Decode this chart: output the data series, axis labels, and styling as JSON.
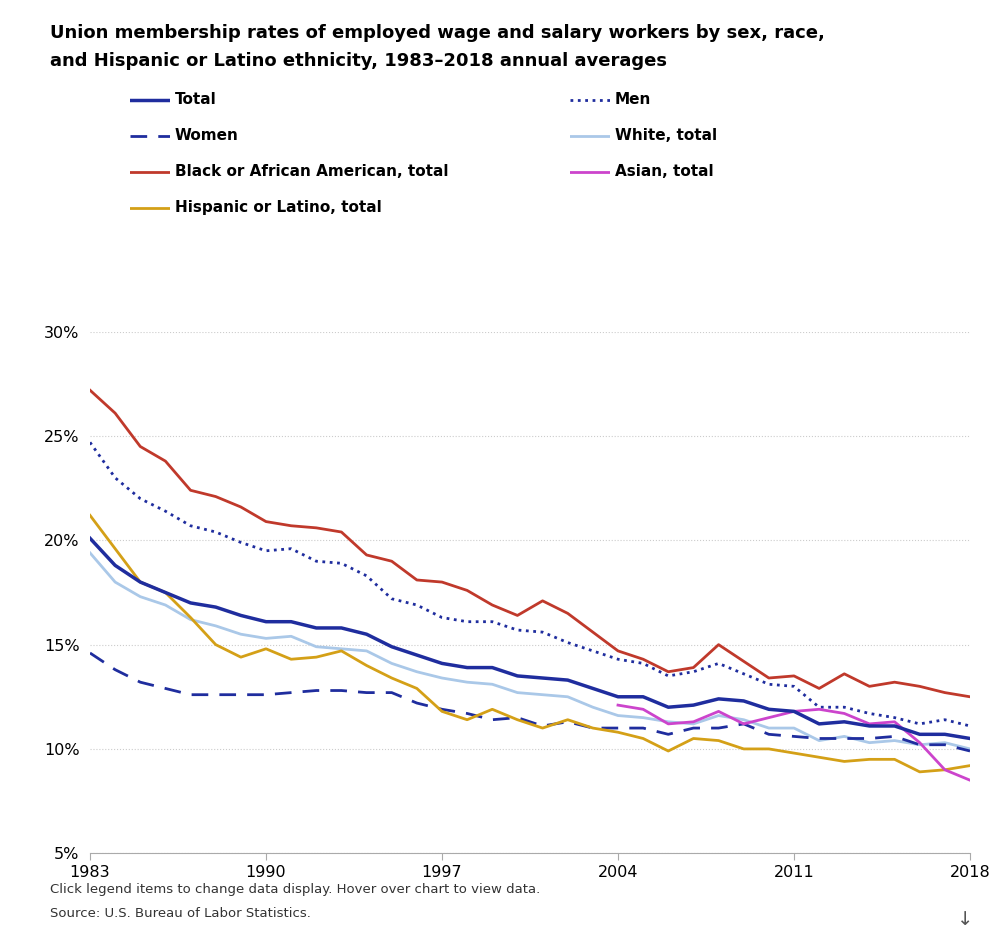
{
  "title_line1": "Union membership rates of employed wage and salary workers by sex, race,",
  "title_line2": "and Hispanic or Latino ethnicity, 1983–2018 annual averages",
  "years": [
    1983,
    1984,
    1985,
    1986,
    1987,
    1988,
    1989,
    1990,
    1991,
    1992,
    1993,
    1994,
    1995,
    1996,
    1997,
    1998,
    1999,
    2000,
    2001,
    2002,
    2003,
    2004,
    2005,
    2006,
    2007,
    2008,
    2009,
    2010,
    2011,
    2012,
    2013,
    2014,
    2015,
    2016,
    2017,
    2018
  ],
  "total": [
    20.1,
    18.8,
    18.0,
    17.5,
    17.0,
    16.8,
    16.4,
    16.1,
    16.1,
    15.8,
    15.8,
    15.5,
    14.9,
    14.5,
    14.1,
    13.9,
    13.9,
    13.5,
    13.4,
    13.3,
    12.9,
    12.5,
    12.5,
    12.0,
    12.1,
    12.4,
    12.3,
    11.9,
    11.8,
    11.2,
    11.3,
    11.1,
    11.1,
    10.7,
    10.7,
    10.5
  ],
  "men": [
    24.7,
    23.0,
    22.0,
    21.4,
    20.7,
    20.4,
    19.9,
    19.5,
    19.6,
    19.0,
    18.9,
    18.3,
    17.2,
    16.9,
    16.3,
    16.1,
    16.1,
    15.7,
    15.6,
    15.1,
    14.7,
    14.3,
    14.1,
    13.5,
    13.7,
    14.1,
    13.6,
    13.1,
    13.0,
    12.0,
    12.0,
    11.7,
    11.5,
    11.2,
    11.4,
    11.1
  ],
  "women": [
    14.6,
    13.8,
    13.2,
    12.9,
    12.6,
    12.6,
    12.6,
    12.6,
    12.7,
    12.8,
    12.8,
    12.7,
    12.7,
    12.2,
    11.9,
    11.7,
    11.4,
    11.5,
    11.1,
    11.3,
    11.0,
    11.0,
    11.0,
    10.7,
    11.0,
    11.0,
    11.2,
    10.7,
    10.6,
    10.5,
    10.5,
    10.5,
    10.6,
    10.2,
    10.2,
    9.9
  ],
  "black": [
    27.2,
    26.1,
    24.5,
    23.8,
    22.4,
    22.1,
    21.6,
    20.9,
    20.7,
    20.6,
    20.4,
    19.3,
    19.0,
    18.1,
    18.0,
    17.6,
    16.9,
    16.4,
    17.1,
    16.5,
    15.6,
    14.7,
    14.3,
    13.7,
    13.9,
    15.0,
    14.2,
    13.4,
    13.5,
    12.9,
    13.6,
    13.0,
    13.2,
    13.0,
    12.7,
    12.5
  ],
  "white": [
    19.4,
    18.0,
    17.3,
    16.9,
    16.2,
    15.9,
    15.5,
    15.3,
    15.4,
    14.9,
    14.8,
    14.7,
    14.1,
    13.7,
    13.4,
    13.2,
    13.1,
    12.7,
    12.6,
    12.5,
    12.0,
    11.6,
    11.5,
    11.3,
    11.2,
    11.6,
    11.4,
    11.0,
    11.0,
    10.4,
    10.6,
    10.3,
    10.4,
    10.2,
    10.3,
    10.0
  ],
  "hispanic": [
    21.2,
    19.6,
    18.0,
    17.5,
    16.3,
    15.0,
    14.4,
    14.8,
    14.3,
    14.4,
    14.7,
    14.0,
    13.4,
    12.9,
    11.8,
    11.4,
    11.9,
    11.4,
    11.0,
    11.4,
    11.0,
    10.8,
    10.5,
    9.9,
    10.5,
    10.4,
    10.0,
    10.0,
    9.8,
    9.6,
    9.4,
    9.5,
    9.5,
    8.9,
    9.0,
    9.2
  ],
  "asian": [
    null,
    null,
    null,
    null,
    null,
    null,
    null,
    null,
    null,
    null,
    null,
    null,
    null,
    null,
    null,
    null,
    null,
    null,
    null,
    null,
    null,
    12.1,
    11.9,
    11.2,
    11.3,
    11.8,
    11.2,
    11.5,
    11.8,
    11.9,
    11.7,
    11.2,
    11.3,
    10.3,
    9.0,
    8.5
  ],
  "color_total": "#1f2d9e",
  "color_men": "#1f2d9e",
  "color_women": "#1f2d9e",
  "color_black": "#c0392b",
  "color_white": "#aac8e8",
  "color_hispanic": "#d4a017",
  "color_asian": "#cc44cc",
  "footer_text1": "Click legend items to change data display. Hover over chart to view data.",
  "footer_text2": "Source: U.S. Bureau of Labor Statistics.",
  "ylim": [
    5,
    30
  ],
  "yticks": [
    5,
    10,
    15,
    20,
    25,
    30
  ],
  "xticks": [
    1983,
    1990,
    1997,
    2004,
    2011,
    2018
  ]
}
